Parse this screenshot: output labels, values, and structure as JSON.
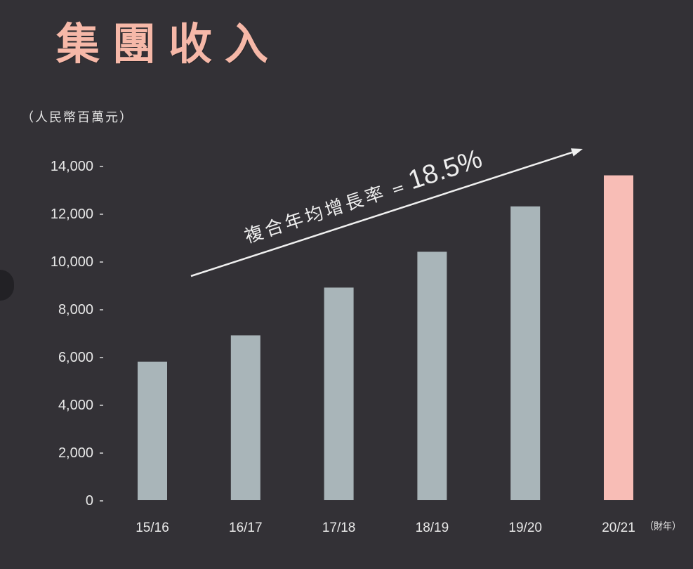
{
  "colors": {
    "background": "#333136",
    "title": "#f6b8a8",
    "text": "#e8e8e8",
    "arrow": "#f0f0f0",
    "tick_mark": "#d8d8d8"
  },
  "chart_data": {
    "type": "bar",
    "title": "集團收入",
    "ylabel": "（人民幣百萬元）",
    "xlabel": "（財年）",
    "categories": [
      "15/16",
      "16/17",
      "17/18",
      "18/19",
      "19/20",
      "20/21"
    ],
    "values": [
      5800,
      6900,
      8900,
      10400,
      12300,
      13600
    ],
    "bar_colors": [
      "#a9b5b9",
      "#a9b5b9",
      "#a9b5b9",
      "#a9b5b9",
      "#a9b5b9",
      "#f8bdb6"
    ],
    "ylim": [
      0,
      14000
    ],
    "yticks": [
      0,
      2000,
      4000,
      6000,
      8000,
      10000,
      12000,
      14000
    ],
    "ytick_labels": [
      "0",
      "2,000",
      "4,000",
      "6,000",
      "8,000",
      "10,000",
      "12,000",
      "14,000"
    ],
    "grid": false,
    "annotation": {
      "label": "複合年均增長率",
      "equals": "=",
      "value": "18.5%"
    }
  }
}
